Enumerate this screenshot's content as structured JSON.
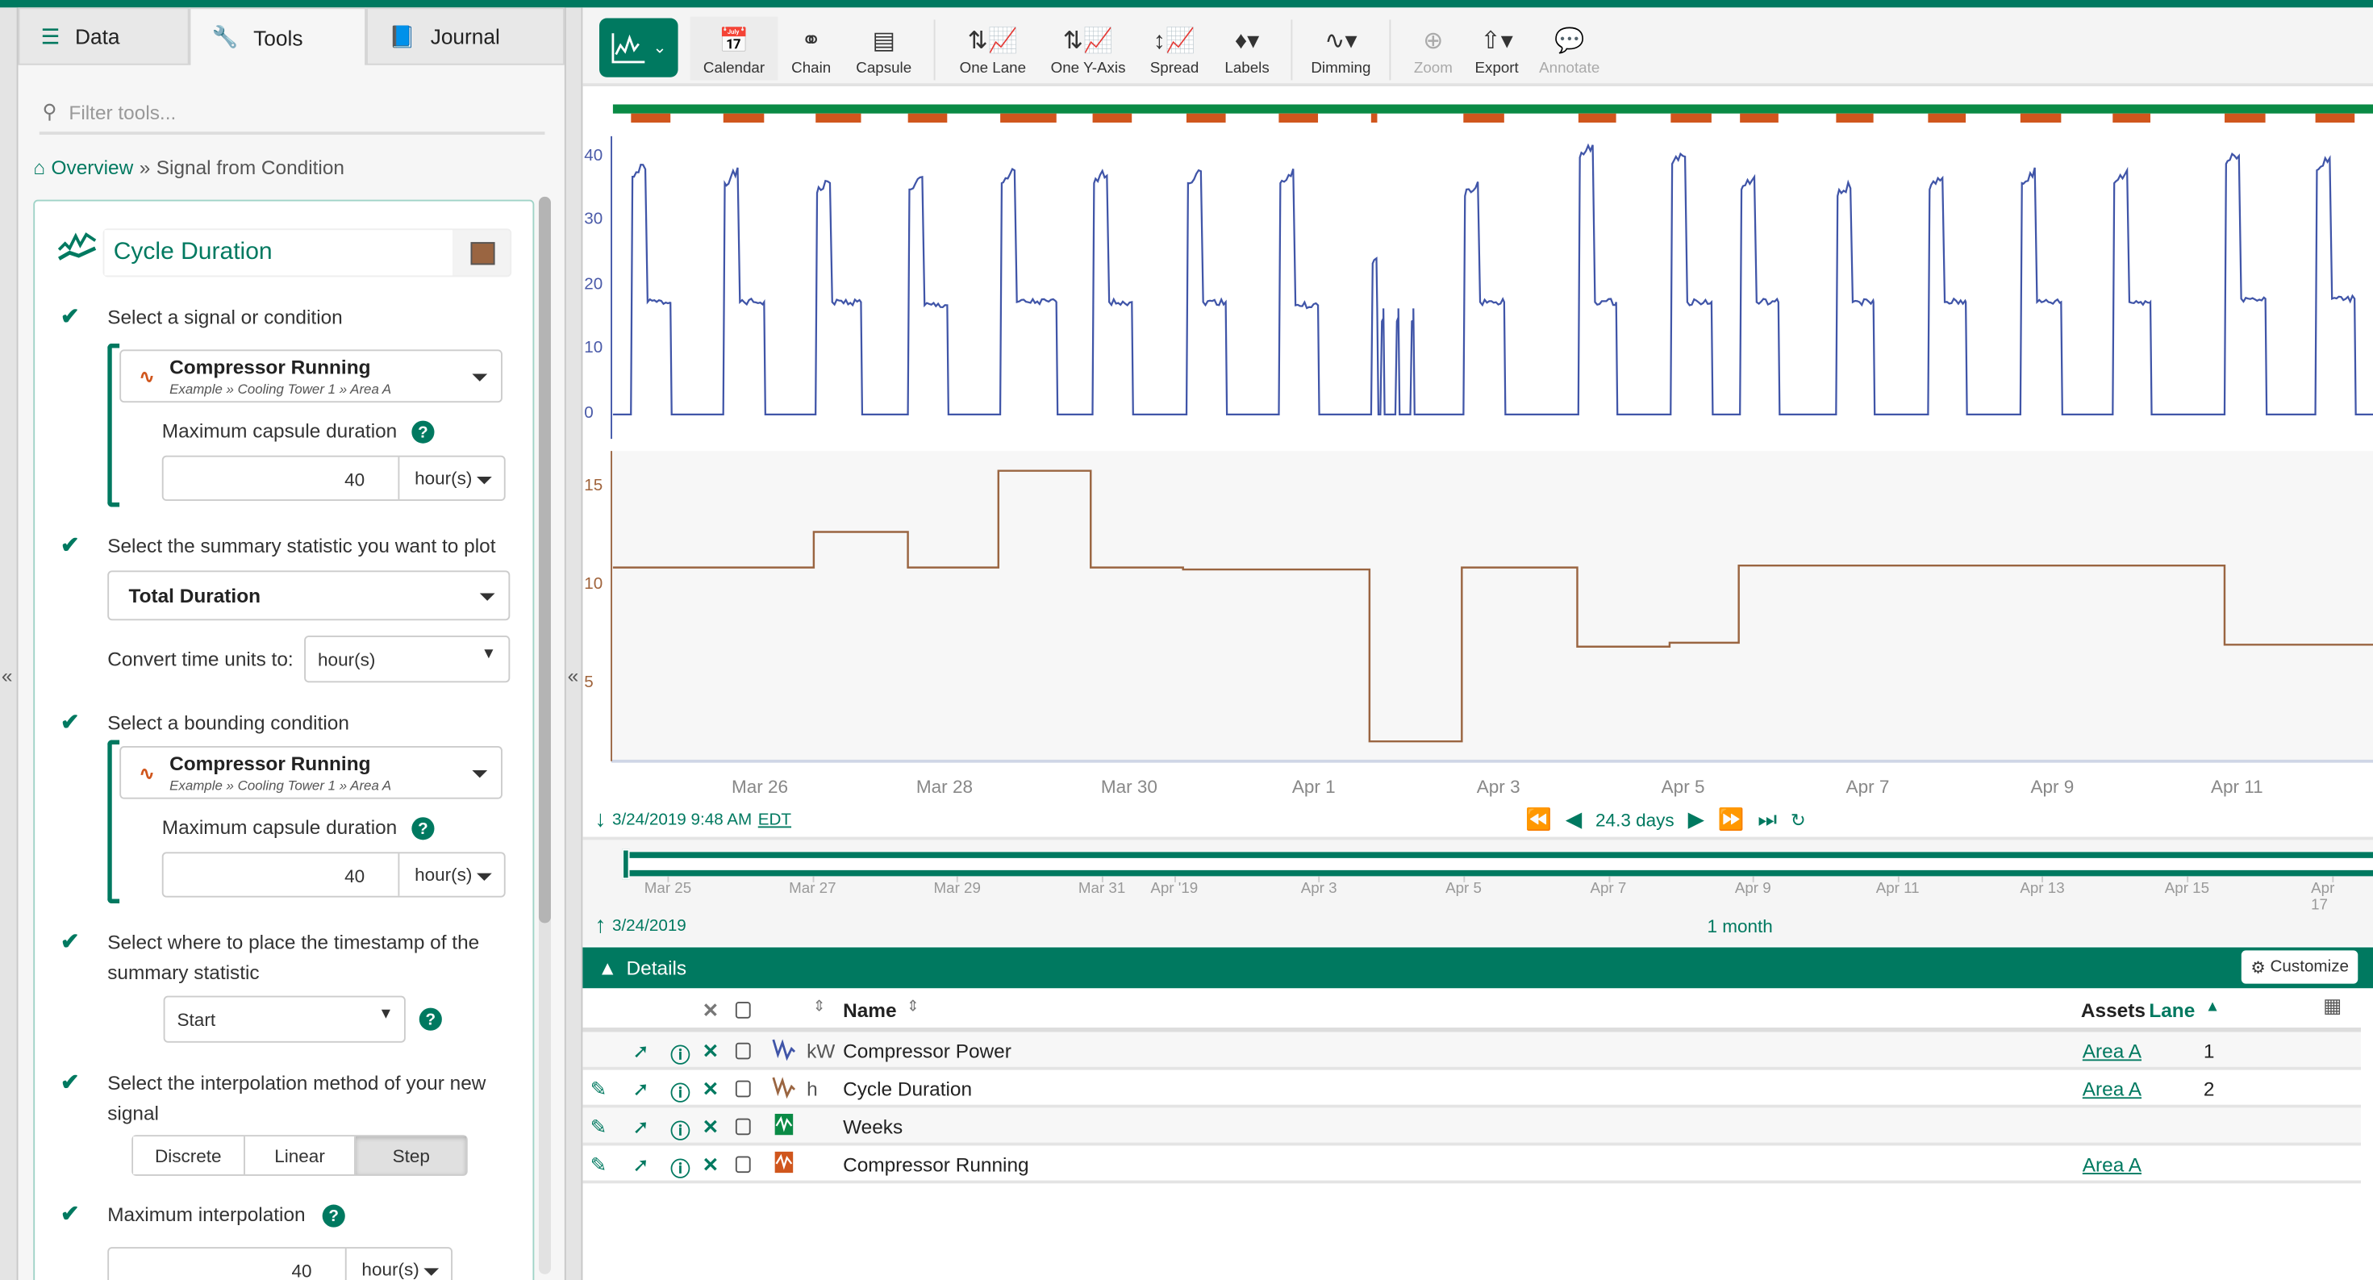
{
  "left_panel": {
    "tabs": [
      {
        "label": "Data",
        "icon": "database-icon"
      },
      {
        "label": "Tools",
        "icon": "wrench-icon",
        "active": true
      },
      {
        "label": "Journal",
        "icon": "book-icon"
      }
    ],
    "filter_placeholder": "Filter tools...",
    "breadcrumb": {
      "home": "Overview",
      "separator": "»",
      "current": "Signal from Condition"
    },
    "tool": {
      "name": "Cycle Duration",
      "color": "#9a6541",
      "step1": {
        "label": "Select a signal or condition",
        "item_name": "Compressor Running",
        "item_path": "Example » Cooling Tower 1 » Area A",
        "max_label": "Maximum capsule duration",
        "max_value": "40",
        "max_unit": "hour(s)"
      },
      "step2": {
        "label": "Select the summary statistic you want to plot",
        "value": "Total Duration",
        "convert_label": "Convert time units to:",
        "convert_value": "hour(s)"
      },
      "step3": {
        "label": "Select a bounding condition",
        "item_name": "Compressor Running",
        "item_path": "Example » Cooling Tower 1 » Area A",
        "max_label": "Maximum capsule duration",
        "max_value": "40",
        "max_unit": "hour(s)"
      },
      "step4": {
        "label": "Select where to place the timestamp of the summary statistic",
        "value": "Start"
      },
      "step5": {
        "label": "Select the interpolation method of your new signal",
        "options": [
          "Discrete",
          "Linear",
          "Step"
        ],
        "selected": "Step"
      },
      "step6": {
        "label": "Maximum interpolation",
        "value": "40",
        "unit": "hour(s)"
      }
    }
  },
  "toolbar": {
    "buttons": [
      {
        "label": "Calendar",
        "icon": "calendar-icon"
      },
      {
        "label": "Chain",
        "icon": "chain-icon"
      },
      {
        "label": "Capsule",
        "icon": "capsule-icon"
      },
      {
        "label": "One Lane",
        "icon": "one-lane-icon"
      },
      {
        "label": "One Y-Axis",
        "icon": "one-y-axis-icon"
      },
      {
        "label": "Spread",
        "icon": "spread-icon"
      },
      {
        "label": "Labels",
        "icon": "tag-icon"
      },
      {
        "label": "Dimming",
        "icon": "dimming-icon"
      },
      {
        "label": "Zoom",
        "icon": "zoom-icon",
        "disabled": true
      },
      {
        "label": "Export",
        "icon": "export-icon"
      },
      {
        "label": "Annotate",
        "icon": "comment-icon",
        "disabled": true
      }
    ]
  },
  "navigation": {
    "start": "3/24/2019 9:48 AM",
    "timezone": "EDT",
    "duration": "24.3 days",
    "overview_start": "3/24/2019",
    "overview_duration": "1 month",
    "overview_ticks": [
      {
        "label": "Mar 25",
        "date": "2019-03-25"
      },
      {
        "label": "Mar 27",
        "date": "2019-03-27"
      },
      {
        "label": "Mar 29",
        "date": "2019-03-29"
      },
      {
        "label": "Mar 31",
        "date": "2019-03-31"
      },
      {
        "label": "Apr '19",
        "date": "2019-04-01"
      },
      {
        "label": "Apr 3",
        "date": "2019-04-03"
      },
      {
        "label": "Apr 5",
        "date": "2019-04-05"
      },
      {
        "label": "Apr 7",
        "date": "2019-04-07"
      },
      {
        "label": "Apr 9",
        "date": "2019-04-09"
      },
      {
        "label": "Apr 11",
        "date": "2019-04-11"
      },
      {
        "label": "Apr 13",
        "date": "2019-04-13"
      },
      {
        "label": "Apr 15",
        "date": "2019-04-15"
      },
      {
        "label": "Apr 17",
        "date": "2019-04-17"
      }
    ]
  },
  "details": {
    "title": "Details",
    "customize": "Customize",
    "columns": {
      "name": "Name",
      "assets": "Assets",
      "lane": "Lane"
    },
    "rows": [
      {
        "unit": "kW",
        "name": "Compressor Power",
        "asset": "Area A",
        "lane": "1",
        "color": "#4055a8",
        "editable": false
      },
      {
        "unit": "h",
        "name": "Cycle Duration",
        "asset": "Area A",
        "lane": "2",
        "color": "#9a6541",
        "editable": true
      },
      {
        "unit": "",
        "name": "Weeks",
        "asset": "",
        "lane": "",
        "color": "#0a8a45",
        "editable": true
      },
      {
        "unit": "",
        "name": "Compressor Running",
        "asset": "Area A",
        "lane": "",
        "color": "#d0561d",
        "editable": true
      }
    ]
  },
  "chart_data": {
    "type": "line",
    "x_range": [
      "2019-03-24T09:48",
      "2019-04-12T11:23"
    ],
    "x_ticks": [
      {
        "label": "Mar 26",
        "date": "2019-03-26"
      },
      {
        "label": "Mar 28",
        "date": "2019-03-28"
      },
      {
        "label": "Mar 30",
        "date": "2019-03-30"
      },
      {
        "label": "Apr 1",
        "date": "2019-04-01"
      },
      {
        "label": "Apr 3",
        "date": "2019-04-03"
      },
      {
        "label": "Apr 5",
        "date": "2019-04-05"
      },
      {
        "label": "Apr 7",
        "date": "2019-04-07"
      },
      {
        "label": "Apr 9",
        "date": "2019-04-09"
      },
      {
        "label": "Apr 11",
        "date": "2019-04-11"
      }
    ],
    "conditions": [
      {
        "name": "Weeks",
        "color": "#0a8a45",
        "capsules": [
          [
            "2019-03-24T09:48",
            "2019-04-12T11:23"
          ]
        ]
      },
      {
        "name": "Compressor Running",
        "color": "#d0561d",
        "capsules": [
          [
            "2019-03-24T14:30",
            "2019-03-25T00:45"
          ],
          [
            "2019-03-25T14:30",
            "2019-03-26T01:06"
          ],
          [
            "2019-03-26T14:30",
            "2019-03-27T02:18"
          ],
          [
            "2019-03-27T14:30",
            "2019-03-28T00:42"
          ],
          [
            "2019-03-28T14:30",
            "2019-03-29T05:06"
          ],
          [
            "2019-03-29T14:30",
            "2019-03-30T00:42"
          ],
          [
            "2019-03-30T14:54",
            "2019-03-31T01:06"
          ],
          [
            "2019-03-31T14:54",
            "2019-04-01T01:06"
          ],
          [
            "2019-04-01T14:54",
            "2019-04-01T16:30"
          ],
          [
            "2019-04-02T14:54",
            "2019-04-03T01:30"
          ],
          [
            "2019-04-03T20:48",
            "2019-04-04T06:36"
          ],
          [
            "2019-04-04T20:48",
            "2019-04-05T07:24"
          ],
          [
            "2019-04-05T14:48",
            "2019-04-06T00:48"
          ],
          [
            "2019-04-06T15:48",
            "2019-04-07T01:30"
          ],
          [
            "2019-04-07T15:42",
            "2019-04-08T01:30"
          ],
          [
            "2019-04-08T15:42",
            "2019-04-09T02:18"
          ],
          [
            "2019-04-09T15:42",
            "2019-04-10T01:30"
          ],
          [
            "2019-04-10T20:48",
            "2019-04-11T07:24"
          ],
          [
            "2019-04-11T20:24",
            "2019-04-12T06:36"
          ]
        ]
      }
    ],
    "series": [
      {
        "name": "Compressor Power",
        "unit": "kW",
        "lane": 1,
        "color": "#4055a8",
        "ylim": [
          -3.8,
          43.3
        ],
        "y_ticks": [
          0,
          10,
          20,
          30,
          40
        ],
        "cycles": [
          {
            "start": "2019-03-24T14:30",
            "end": "2019-03-25T00:45",
            "peak": 39,
            "plateau": 17.5
          },
          {
            "start": "2019-03-25T14:30",
            "end": "2019-03-26T01:06",
            "peak": 38,
            "plateau": 17.5
          },
          {
            "start": "2019-03-26T14:30",
            "end": "2019-03-27T02:18",
            "peak": 36.5,
            "plateau": 17.5
          },
          {
            "start": "2019-03-27T14:30",
            "end": "2019-03-28T00:42",
            "peak": 37,
            "plateau": 17
          },
          {
            "start": "2019-03-28T14:30",
            "end": "2019-03-29T05:06",
            "peak": 38,
            "plateau": 17.5
          },
          {
            "start": "2019-03-29T14:30",
            "end": "2019-03-30T00:42",
            "peak": 38,
            "plateau": 17.5
          },
          {
            "start": "2019-03-30T14:54",
            "end": "2019-03-31T01:06",
            "peak": 38,
            "plateau": 17.5
          },
          {
            "start": "2019-03-31T14:54",
            "end": "2019-04-01T01:06",
            "peak": 38,
            "plateau": 17
          },
          {
            "start": "2019-04-01T14:54",
            "end": "2019-04-01T16:30",
            "peak": 25.5,
            "plateau": 16.5
          },
          {
            "start": "2019-04-01T17:18",
            "end": "2019-04-01T18:06",
            "peak": 16.5,
            "plateau": 16.5
          },
          {
            "start": "2019-04-01T21:12",
            "end": "2019-04-01T22:00",
            "peak": 16.5,
            "plateau": 16.5
          },
          {
            "start": "2019-04-02T01:06",
            "end": "2019-04-02T01:54",
            "peak": 16.5,
            "plateau": 16.5
          },
          {
            "start": "2019-04-02T14:54",
            "end": "2019-04-03T01:30",
            "peak": 36,
            "plateau": 17.5
          },
          {
            "start": "2019-04-03T20:48",
            "end": "2019-04-04T06:36",
            "peak": 42,
            "plateau": 17.5
          },
          {
            "start": "2019-04-04T20:48",
            "end": "2019-04-05T07:24",
            "peak": 41,
            "plateau": 17.5
          },
          {
            "start": "2019-04-05T14:48",
            "end": "2019-04-06T00:48",
            "peak": 37,
            "plateau": 17.5
          },
          {
            "start": "2019-04-06T15:48",
            "end": "2019-04-07T01:30",
            "peak": 36,
            "plateau": 17.5
          },
          {
            "start": "2019-04-07T15:42",
            "end": "2019-04-08T01:30",
            "peak": 37,
            "plateau": 17.5
          },
          {
            "start": "2019-04-08T15:42",
            "end": "2019-04-09T02:18",
            "peak": 38,
            "plateau": 17.5
          },
          {
            "start": "2019-04-09T15:42",
            "end": "2019-04-10T01:30",
            "peak": 38,
            "plateau": 17.5
          },
          {
            "start": "2019-04-10T20:48",
            "end": "2019-04-11T07:24",
            "peak": 41,
            "plateau": 18
          },
          {
            "start": "2019-04-11T20:24",
            "end": "2019-04-12T06:36",
            "peak": 40,
            "plateau": 18
          }
        ]
      },
      {
        "name": "Cycle Duration",
        "unit": "h",
        "lane": 2,
        "color": "#9a6541",
        "interpolation": "step",
        "ylim": [
          1.1,
          16.8
        ],
        "y_ticks": [
          5,
          10,
          15
        ],
        "steps": [
          [
            "2019-03-24T09:48",
            10.9
          ],
          [
            "2019-03-26T14:00",
            12.7
          ],
          [
            "2019-03-27T14:30",
            10.9
          ],
          [
            "2019-03-28T14:00",
            15.8
          ],
          [
            "2019-03-29T14:00",
            10.9
          ],
          [
            "2019-03-30T14:00",
            10.8
          ],
          [
            "2019-04-01T14:30",
            2.1
          ],
          [
            "2019-04-02T14:30",
            10.9
          ],
          [
            "2019-04-03T20:30",
            6.9
          ],
          [
            "2019-04-04T20:30",
            7.1
          ],
          [
            "2019-04-05T14:30",
            11.0
          ],
          [
            "2019-04-10T20:48",
            7.0
          ]
        ]
      }
    ]
  }
}
